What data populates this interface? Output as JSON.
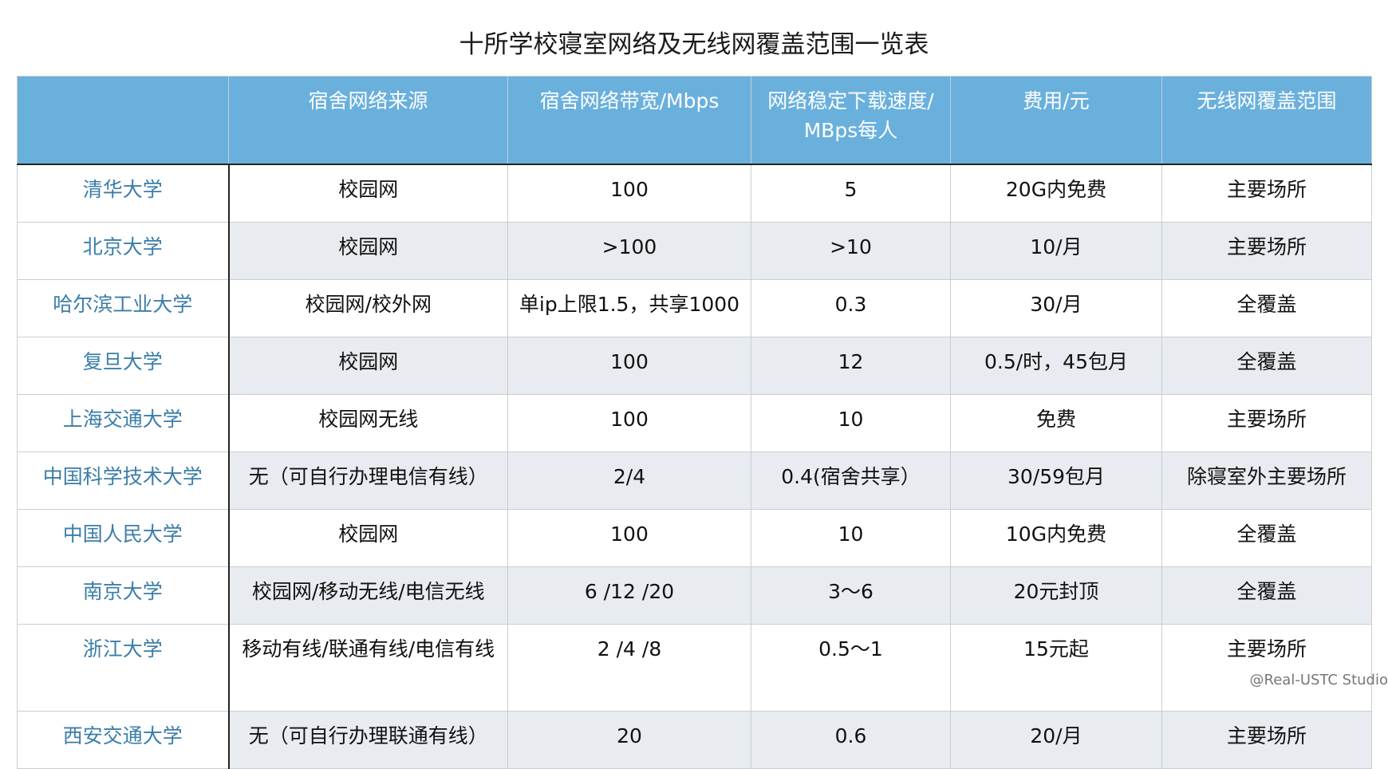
{
  "title": "十所学校寝室网络及无线网覆盖范围一览表",
  "credit": "@Real-USTC Studio",
  "chart_data": {
    "type": "table",
    "columns": [
      "",
      "宿舍网络来源",
      "宿舍网络带宽/Mbps",
      "网络稳定下载速度/MBps每人",
      "费用/元",
      "无线网覆盖范围"
    ],
    "header_lines": [
      [
        ""
      ],
      [
        "宿舍网络来源"
      ],
      [
        "宿舍网络带宽/Mbps"
      ],
      [
        "网络稳定下载速度/",
        "MBps每人"
      ],
      [
        "费用/元"
      ],
      [
        "无线网覆盖范围"
      ]
    ],
    "rows": [
      [
        "清华大学",
        "校园网",
        "100",
        "5",
        "20G内免费",
        "主要场所"
      ],
      [
        "北京大学",
        "校园网",
        ">100",
        ">10",
        "10/月",
        "主要场所"
      ],
      [
        "哈尔滨工业大学",
        "校园网/校外网",
        "单ip上限1.5，共享1000",
        "0.3",
        "30/月",
        "全覆盖"
      ],
      [
        "复旦大学",
        "校园网",
        "100",
        "12",
        "0.5/时，45包月",
        "全覆盖"
      ],
      [
        "上海交通大学",
        "校园网无线",
        "100",
        "10",
        "免费",
        "主要场所"
      ],
      [
        "中国科学技术大学",
        "无（可自行办理电信有线）",
        "2/4",
        "0.4(宿舍共享）",
        "30/59包月",
        "除寝室外主要场所"
      ],
      [
        "中国人民大学",
        "校园网",
        "100",
        "10",
        "10G内免费",
        "全覆盖"
      ],
      [
        "南京大学",
        "校园网/移动无线/电信无线",
        "6 /12 /20",
        "3～6",
        "20元封顶",
        "全覆盖"
      ],
      [
        "浙江大学",
        "移动有线/联通有线/电信有线",
        "2 /4 /8",
        "0.5～1",
        "15元起",
        "主要场所"
      ],
      [
        "西安交通大学",
        "无（可自行办理联通有线）",
        "20",
        "0.6",
        "20/月",
        "主要场所"
      ]
    ]
  }
}
